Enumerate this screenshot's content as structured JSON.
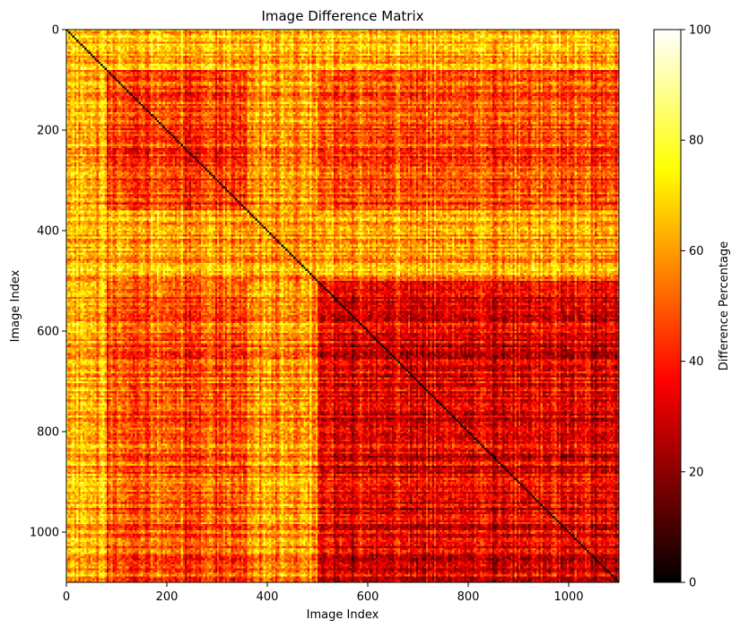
{
  "chart_data": {
    "type": "heatmap",
    "title": "Image Difference Matrix",
    "xlabel": "Image Index",
    "ylabel": "Image Index",
    "colorbar_label": "Difference Percentage",
    "colormap": "hot",
    "matrix_size": 1100,
    "xlim": [
      0,
      1100
    ],
    "ylim": [
      1100,
      0
    ],
    "x_ticks": [
      0,
      200,
      400,
      600,
      800,
      1000
    ],
    "y_ticks": [
      0,
      200,
      400,
      600,
      800,
      1000
    ],
    "colorbar_range": [
      0,
      100
    ],
    "colorbar_ticks": [
      0,
      20,
      40,
      60,
      80,
      100
    ],
    "diagonal_value": 0,
    "region_levels": {
      "upper_left_0_80": 62,
      "cluster_80_360": 45,
      "band_360_500": 60,
      "cluster_500_1100": 33,
      "cross_blocks": 48
    },
    "colors": {
      "cmap_black": "#000000",
      "cmap_red": "#ff0000",
      "cmap_yellow": "#ffff00",
      "cmap_white": "#ffffff"
    }
  }
}
